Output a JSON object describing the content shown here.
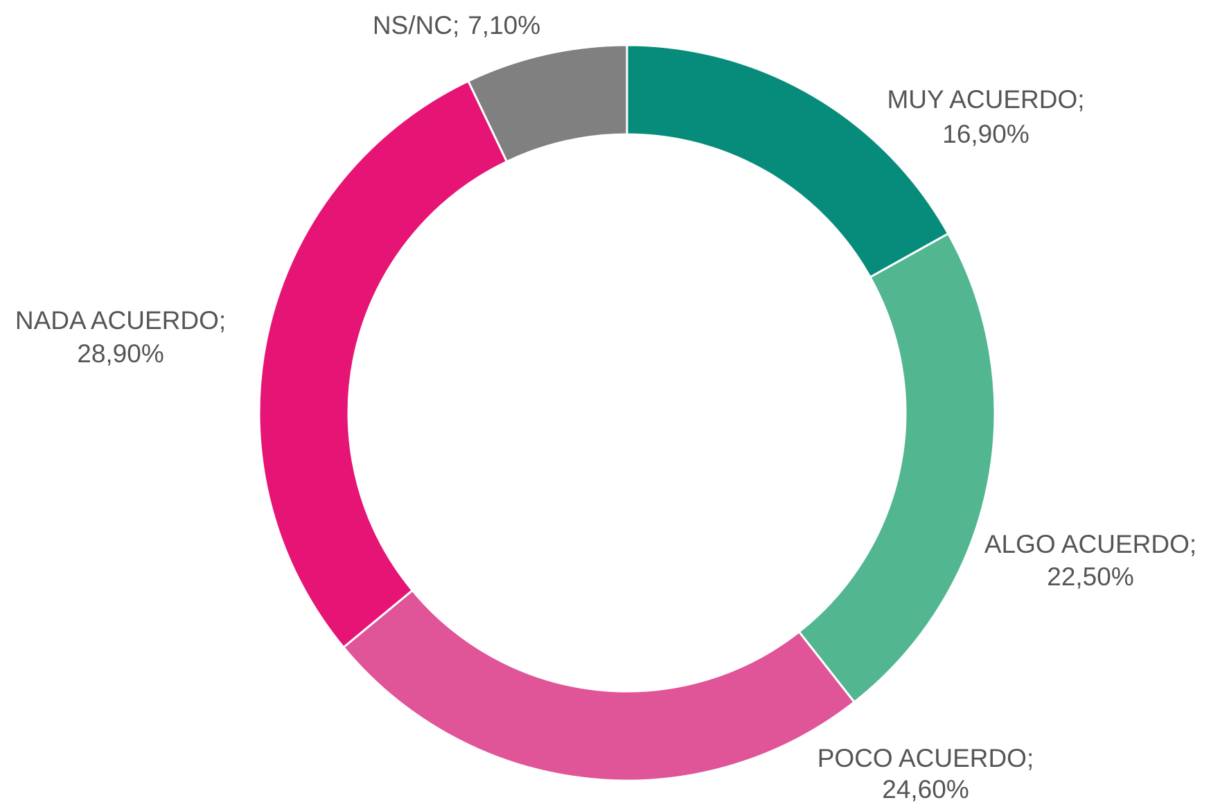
{
  "chart_data": {
    "type": "donut",
    "categories": [
      "MUY ACUERDO;",
      "ALGO ACUERDO;",
      "POCO ACUERDO;",
      "NADA ACUERDO;",
      "NS/NC;"
    ],
    "values": [
      16.9,
      22.5,
      24.6,
      28.9,
      7.1
    ],
    "value_labels": [
      "16,90%",
      "22,50%",
      "24,60%",
      "28,90%",
      "7,10%"
    ],
    "colors": [
      "#078c7c",
      "#52b690",
      "#e05498",
      "#e61475",
      "#808080"
    ]
  }
}
